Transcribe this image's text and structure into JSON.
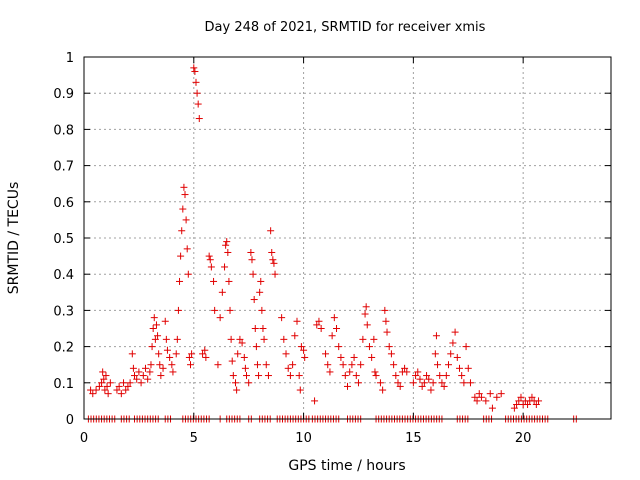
{
  "chart_data": {
    "type": "scatter",
    "title": "Day 248 of 2021, SRMTID for receiver xmis",
    "xlabel": "GPS time / hours",
    "ylabel": "SRMTID / TECUs",
    "xlim": [
      0,
      24
    ],
    "ylim": [
      0,
      1
    ],
    "xticks": [
      0,
      5,
      10,
      15,
      20
    ],
    "xtick_labels": [
      "0",
      "5",
      "10",
      "15",
      "20"
    ],
    "yticks": [
      0,
      0.1,
      0.2,
      0.3,
      0.4,
      0.5,
      0.6,
      0.7,
      0.8,
      0.9,
      1
    ],
    "ytick_labels": [
      "0",
      "0.1",
      "0.2",
      "0.3",
      "0.4",
      "0.5",
      "0.6",
      "0.7",
      "0.8",
      "0.9",
      "1"
    ],
    "grid": true,
    "marker": "+",
    "marker_color": "#e00000",
    "series": [
      {
        "name": "SRMTID",
        "points": [
          [
            0.3,
            0.08
          ],
          [
            0.4,
            0.07
          ],
          [
            0.55,
            0.08
          ],
          [
            0.7,
            0.09
          ],
          [
            0.8,
            0.1
          ],
          [
            0.85,
            0.13
          ],
          [
            0.9,
            0.11
          ],
          [
            0.95,
            0.08
          ],
          [
            1.0,
            0.12
          ],
          [
            1.05,
            0.09
          ],
          [
            1.1,
            0.07
          ],
          [
            1.2,
            0.1
          ],
          [
            1.5,
            0.08
          ],
          [
            1.6,
            0.09
          ],
          [
            1.7,
            0.07
          ],
          [
            1.8,
            0.1
          ],
          [
            1.9,
            0.08
          ],
          [
            2.0,
            0.09
          ],
          [
            2.1,
            0.1
          ],
          [
            2.2,
            0.18
          ],
          [
            2.25,
            0.14
          ],
          [
            2.3,
            0.12
          ],
          [
            2.4,
            0.11
          ],
          [
            2.5,
            0.13
          ],
          [
            2.6,
            0.1
          ],
          [
            2.7,
            0.12
          ],
          [
            2.8,
            0.14
          ],
          [
            2.9,
            0.11
          ],
          [
            3.0,
            0.13
          ],
          [
            3.05,
            0.15
          ],
          [
            3.1,
            0.2
          ],
          [
            3.15,
            0.25
          ],
          [
            3.2,
            0.28
          ],
          [
            3.25,
            0.22
          ],
          [
            3.3,
            0.26
          ],
          [
            3.35,
            0.23
          ],
          [
            3.4,
            0.18
          ],
          [
            3.45,
            0.15
          ],
          [
            3.5,
            0.12
          ],
          [
            3.6,
            0.14
          ],
          [
            3.7,
            0.27
          ],
          [
            3.75,
            0.22
          ],
          [
            3.8,
            0.19
          ],
          [
            3.9,
            0.17
          ],
          [
            4.0,
            0.15
          ],
          [
            4.05,
            0.13
          ],
          [
            4.2,
            0.18
          ],
          [
            4.25,
            0.22
          ],
          [
            4.3,
            0.3
          ],
          [
            4.35,
            0.38
          ],
          [
            4.4,
            0.45
          ],
          [
            4.45,
            0.52
          ],
          [
            4.5,
            0.58
          ],
          [
            4.55,
            0.64
          ],
          [
            4.6,
            0.62
          ],
          [
            4.65,
            0.55
          ],
          [
            4.7,
            0.47
          ],
          [
            4.75,
            0.4
          ],
          [
            4.8,
            0.17
          ],
          [
            4.85,
            0.15
          ],
          [
            4.9,
            0.18
          ],
          [
            5.0,
            0.97
          ],
          [
            5.05,
            0.96
          ],
          [
            5.1,
            0.93
          ],
          [
            5.15,
            0.9
          ],
          [
            5.2,
            0.87
          ],
          [
            5.25,
            0.83
          ],
          [
            5.4,
            0.18
          ],
          [
            5.5,
            0.19
          ],
          [
            5.55,
            0.17
          ],
          [
            5.7,
            0.45
          ],
          [
            5.75,
            0.44
          ],
          [
            5.8,
            0.42
          ],
          [
            5.9,
            0.38
          ],
          [
            5.95,
            0.3
          ],
          [
            6.1,
            0.15
          ],
          [
            6.2,
            0.28
          ],
          [
            6.3,
            0.35
          ],
          [
            6.4,
            0.42
          ],
          [
            6.45,
            0.48
          ],
          [
            6.5,
            0.49
          ],
          [
            6.55,
            0.46
          ],
          [
            6.6,
            0.38
          ],
          [
            6.65,
            0.3
          ],
          [
            6.7,
            0.22
          ],
          [
            6.75,
            0.16
          ],
          [
            6.8,
            0.12
          ],
          [
            6.9,
            0.1
          ],
          [
            6.95,
            0.08
          ],
          [
            7.0,
            0.18
          ],
          [
            7.1,
            0.22
          ],
          [
            7.2,
            0.21
          ],
          [
            7.3,
            0.17
          ],
          [
            7.35,
            0.14
          ],
          [
            7.4,
            0.12
          ],
          [
            7.5,
            0.1
          ],
          [
            7.6,
            0.46
          ],
          [
            7.65,
            0.44
          ],
          [
            7.7,
            0.4
          ],
          [
            7.75,
            0.33
          ],
          [
            7.8,
            0.25
          ],
          [
            7.85,
            0.2
          ],
          [
            7.9,
            0.15
          ],
          [
            7.95,
            0.12
          ],
          [
            8.0,
            0.35
          ],
          [
            8.05,
            0.38
          ],
          [
            8.1,
            0.3
          ],
          [
            8.15,
            0.25
          ],
          [
            8.2,
            0.22
          ],
          [
            8.3,
            0.15
          ],
          [
            8.4,
            0.12
          ],
          [
            8.5,
            0.52
          ],
          [
            8.55,
            0.46
          ],
          [
            8.6,
            0.44
          ],
          [
            8.65,
            0.43
          ],
          [
            8.7,
            0.4
          ],
          [
            9.0,
            0.28
          ],
          [
            9.1,
            0.22
          ],
          [
            9.2,
            0.18
          ],
          [
            9.3,
            0.14
          ],
          [
            9.4,
            0.12
          ],
          [
            9.5,
            0.15
          ],
          [
            9.6,
            0.23
          ],
          [
            9.7,
            0.27
          ],
          [
            9.8,
            0.12
          ],
          [
            9.85,
            0.08
          ],
          [
            9.9,
            0.2
          ],
          [
            10.0,
            0.19
          ],
          [
            10.05,
            0.17
          ],
          [
            10.5,
            0.05
          ],
          [
            10.6,
            0.26
          ],
          [
            10.7,
            0.27
          ],
          [
            10.8,
            0.25
          ],
          [
            11.0,
            0.18
          ],
          [
            11.1,
            0.15
          ],
          [
            11.2,
            0.13
          ],
          [
            11.3,
            0.23
          ],
          [
            11.4,
            0.28
          ],
          [
            11.5,
            0.25
          ],
          [
            11.6,
            0.2
          ],
          [
            11.7,
            0.17
          ],
          [
            11.8,
            0.15
          ],
          [
            11.9,
            0.12
          ],
          [
            12.0,
            0.09
          ],
          [
            12.1,
            0.13
          ],
          [
            12.2,
            0.15
          ],
          [
            12.3,
            0.17
          ],
          [
            12.4,
            0.12
          ],
          [
            12.5,
            0.1
          ],
          [
            12.6,
            0.15
          ],
          [
            12.7,
            0.22
          ],
          [
            12.8,
            0.29
          ],
          [
            12.85,
            0.31
          ],
          [
            12.9,
            0.26
          ],
          [
            13.0,
            0.2
          ],
          [
            13.1,
            0.17
          ],
          [
            13.2,
            0.22
          ],
          [
            13.25,
            0.13
          ],
          [
            13.3,
            0.12
          ],
          [
            13.5,
            0.1
          ],
          [
            13.6,
            0.08
          ],
          [
            13.7,
            0.3
          ],
          [
            13.75,
            0.27
          ],
          [
            13.8,
            0.24
          ],
          [
            13.9,
            0.2
          ],
          [
            14.0,
            0.18
          ],
          [
            14.1,
            0.15
          ],
          [
            14.2,
            0.12
          ],
          [
            14.3,
            0.1
          ],
          [
            14.4,
            0.09
          ],
          [
            14.5,
            0.13
          ],
          [
            14.6,
            0.14
          ],
          [
            14.7,
            0.13
          ],
          [
            15.0,
            0.1
          ],
          [
            15.1,
            0.12
          ],
          [
            15.2,
            0.13
          ],
          [
            15.3,
            0.11
          ],
          [
            15.4,
            0.09
          ],
          [
            15.5,
            0.1
          ],
          [
            15.6,
            0.12
          ],
          [
            15.7,
            0.11
          ],
          [
            15.8,
            0.08
          ],
          [
            15.9,
            0.1
          ],
          [
            16.0,
            0.18
          ],
          [
            16.05,
            0.23
          ],
          [
            16.1,
            0.15
          ],
          [
            16.2,
            0.12
          ],
          [
            16.3,
            0.1
          ],
          [
            16.4,
            0.09
          ],
          [
            16.5,
            0.12
          ],
          [
            16.6,
            0.15
          ],
          [
            16.7,
            0.18
          ],
          [
            16.8,
            0.21
          ],
          [
            16.9,
            0.24
          ],
          [
            17.0,
            0.17
          ],
          [
            17.1,
            0.14
          ],
          [
            17.2,
            0.12
          ],
          [
            17.3,
            0.1
          ],
          [
            17.4,
            0.2
          ],
          [
            17.5,
            0.14
          ],
          [
            17.6,
            0.1
          ],
          [
            17.8,
            0.06
          ],
          [
            17.9,
            0.05
          ],
          [
            18.0,
            0.07
          ],
          [
            18.1,
            0.06
          ],
          [
            18.3,
            0.05
          ],
          [
            18.5,
            0.07
          ],
          [
            18.6,
            0.03
          ],
          [
            18.8,
            0.06
          ],
          [
            19.0,
            0.07
          ],
          [
            19.6,
            0.03
          ],
          [
            19.7,
            0.04
          ],
          [
            19.8,
            0.05
          ],
          [
            19.9,
            0.06
          ],
          [
            20.0,
            0.04
          ],
          [
            20.1,
            0.05
          ],
          [
            20.2,
            0.04
          ],
          [
            20.3,
            0.05
          ],
          [
            20.4,
            0.06
          ],
          [
            20.5,
            0.05
          ],
          [
            20.6,
            0.04
          ],
          [
            20.7,
            0.05
          ]
        ]
      }
    ],
    "zero_band_segments": [
      [
        0.2,
        1.5
      ],
      [
        1.7,
        2.1
      ],
      [
        2.3,
        3.4
      ],
      [
        3.7,
        4.0
      ],
      [
        4.5,
        5.7
      ],
      [
        6.2,
        6.3
      ],
      [
        6.5,
        7.2
      ],
      [
        7.5,
        7.7
      ],
      [
        8.0,
        8.5
      ],
      [
        8.8,
        10.3
      ],
      [
        10.4,
        11.6
      ],
      [
        12.0,
        12.6
      ],
      [
        13.3,
        16.3
      ],
      [
        17.0,
        17.5
      ],
      [
        18.2,
        18.6
      ],
      [
        19.2,
        21.2
      ],
      [
        22.3,
        22.5
      ]
    ]
  }
}
